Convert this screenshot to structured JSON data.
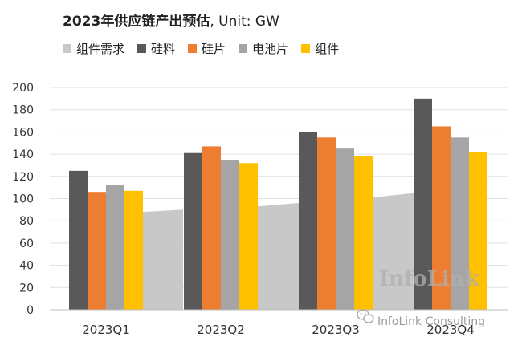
{
  "chart_data": {
    "type": "bar",
    "title": "2023年供应链产出预估",
    "title_unit": ", Unit: GW",
    "categories": [
      "2023Q1",
      "2023Q2",
      "2023Q3",
      "2023Q4"
    ],
    "area_series": {
      "name": "组件需求",
      "color": "#c8c8c8",
      "values": [
        [
          88,
          90
        ],
        [
          93,
          96
        ],
        [
          101,
          105
        ],
        [
          null,
          null
        ]
      ]
    },
    "series": [
      {
        "name": "硅料",
        "color": "#595959",
        "values": [
          125,
          141,
          160,
          190
        ]
      },
      {
        "name": "硅片",
        "color": "#ed7d31",
        "values": [
          106,
          147,
          155,
          165
        ]
      },
      {
        "name": "电池片",
        "color": "#a5a5a5",
        "values": [
          112,
          135,
          145,
          155
        ]
      },
      {
        "name": "组件",
        "color": "#ffc000",
        "values": [
          107,
          132,
          138,
          142
        ]
      }
    ],
    "ylim": [
      0,
      200
    ],
    "yticks": [
      0,
      20,
      40,
      60,
      80,
      100,
      120,
      140,
      160,
      180,
      200
    ],
    "grid": true,
    "legend_position": "top-left"
  },
  "watermark": {
    "brand": "InfoLink",
    "wechat": "InfoLink Consulting",
    "wechat_icon": "wechat-icon"
  }
}
